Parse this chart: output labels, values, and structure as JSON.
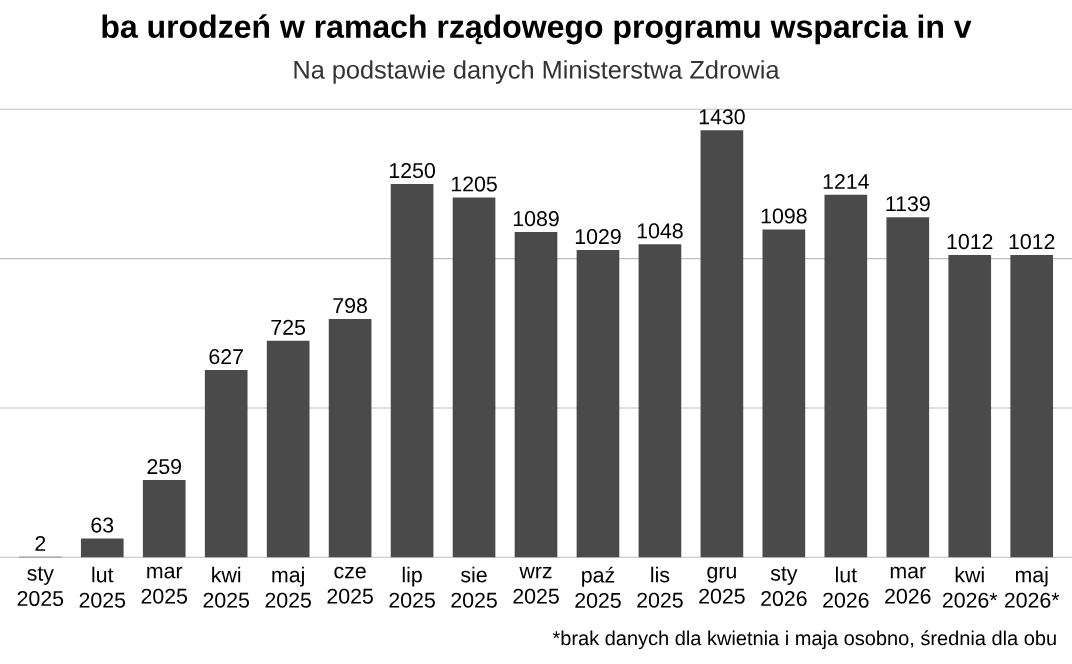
{
  "chart_data": {
    "type": "bar",
    "title": "ba urodzeń w ramach rządowego programu wsparcia in v",
    "subtitle": "Na podstawie danych Ministerstwa Zdrowia",
    "categories": [
      "sty 2025",
      "lut 2025",
      "mar 2025",
      "kwi 2025",
      "maj 2025",
      "cze 2025",
      "lip 2025",
      "sie 2025",
      "wrz 2025",
      "paź 2025",
      "lis 2025",
      "gru 2025",
      "sty 2026",
      "lut 2026",
      "mar 2026",
      "kwi 2026*",
      "maj 2026*"
    ],
    "values": [
      2,
      63,
      259,
      627,
      725,
      798,
      1250,
      1205,
      1089,
      1029,
      1048,
      1430,
      1098,
      1214,
      1139,
      1012,
      1012
    ],
    "color": "#4a4a4a",
    "ylim": [
      0,
      1500
    ],
    "yticks": [
      {
        "value": 0,
        "label": null
      },
      {
        "value": 500,
        "label": null
      },
      {
        "value": 1000,
        "label": null
      },
      {
        "value": 1500,
        "label": null
      }
    ],
    "tick_labels": "x",
    "grid": "y",
    "data_labels": true,
    "annotations": [
      "*brak danych dla kwietnia i maja osobno, średnia dla obu"
    ]
  }
}
